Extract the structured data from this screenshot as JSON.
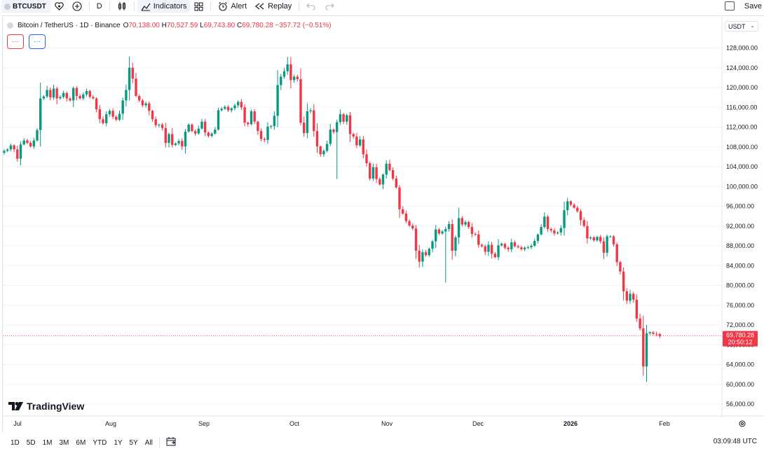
{
  "toolbar": {
    "symbol": "BTCUSDT",
    "interval": "D",
    "indicators_label": "Indicators",
    "alert_label": "Alert",
    "replay_label": "Replay",
    "save_label": "Save"
  },
  "legend": {
    "title": "Bitcoin / TetherUS · 1D · Binance",
    "o_label": "O",
    "o_value": "70,138.00",
    "h_label": "H",
    "h_value": "70,527.59",
    "l_label": "L",
    "l_value": "69,743.80",
    "c_label": "C",
    "c_value": "69,780.28",
    "change": "−357.72 (−0.51%)"
  },
  "indicator_buttons": [
    "···",
    "···"
  ],
  "currency": "USDT",
  "brand": "TradingView",
  "price_label": {
    "price": "69,780.28",
    "countdown": "20:50:12"
  },
  "colors": {
    "up": "#089981",
    "down": "#f23645",
    "accent": "#2962ff"
  },
  "bottom_bar": {
    "ranges": [
      "1D",
      "5D",
      "1M",
      "3M",
      "6M",
      "YTD",
      "1Y",
      "5Y",
      "All"
    ],
    "time": "03:09:48 UTC"
  },
  "chart_data": {
    "type": "candlestick",
    "yticks": [
      56000,
      60000,
      64000,
      68000,
      72000,
      76000,
      80000,
      84000,
      88000,
      92000,
      96000,
      100000,
      104000,
      108000,
      112000,
      116000,
      120000,
      124000,
      128000
    ],
    "ytick_labels": [
      "56,000.00",
      "60,000.00",
      "64,000.00",
      "68,000.00",
      "72,000.00",
      "76,000.00",
      "80,000.00",
      "84,000.00",
      "88,000.00",
      "92,000.00",
      "96,000.00",
      "100,000.00",
      "104,000.00",
      "108,000.00",
      "112,000.00",
      "116,000.00",
      "120,000.00",
      "124,000.00",
      "128,000.00"
    ],
    "xticks": [
      "Jul",
      "Aug",
      "Sep",
      "Oct",
      "Nov",
      "Dec",
      "2026",
      "Feb"
    ],
    "last_price": 69780.28,
    "closes": [
      107200,
      107500,
      108300,
      107500,
      105600,
      108500,
      109300,
      108800,
      108100,
      109300,
      111400,
      117800,
      118200,
      119500,
      118000,
      119800,
      117800,
      118100,
      118900,
      117800,
      117400,
      119900,
      118300,
      117800,
      118600,
      119300,
      118100,
      117800,
      115600,
      113600,
      112800,
      114600,
      115300,
      114100,
      113500,
      114700,
      117400,
      119500,
      124000,
      121800,
      118300,
      117400,
      116400,
      116800,
      115300,
      113600,
      112400,
      112500,
      111800,
      108800,
      110600,
      108400,
      108700,
      109200,
      108100,
      111100,
      112500,
      111200,
      110700,
      111700,
      113100,
      110900,
      110200,
      110700,
      111500,
      115400,
      115700,
      116100,
      115400,
      115800,
      116400,
      117100,
      116000,
      112900,
      112600,
      115200,
      113100,
      111200,
      109600,
      109400,
      112100,
      112200,
      114300,
      120500,
      122200,
      123300,
      124700,
      121500,
      122200,
      121700,
      112900,
      110800,
      115200,
      115400,
      111200,
      108100,
      106500,
      107200,
      108600,
      111500,
      111000,
      113000,
      114600,
      113100,
      114400,
      110600,
      110100,
      108300,
      109500,
      106500,
      104700,
      101600,
      103900,
      101500,
      100400,
      102400,
      104600,
      103300,
      101600,
      99800,
      95400,
      94500,
      93000,
      92100,
      91500,
      87000,
      84800,
      86700,
      86100,
      87400,
      88900,
      91300,
      90500,
      90900,
      91400,
      92400,
      87000,
      89700,
      93600,
      92300,
      92800,
      91800,
      90400,
      90300,
      88200,
      87900,
      86800,
      88200,
      86400,
      85700,
      88100,
      88400,
      87600,
      87300,
      88700,
      87900,
      87700,
      87300,
      87600,
      87700,
      88000,
      89000,
      90300,
      91800,
      93900,
      91400,
      91100,
      90500,
      90700,
      91600,
      95200,
      97000,
      96300,
      95700,
      95000,
      93200,
      92000,
      89500,
      89700,
      89100,
      89800,
      88900,
      86600,
      89900,
      89900,
      88300,
      84700,
      82800,
      78800,
      76900,
      78300,
      77100,
      73300,
      71300,
      63600,
      70300,
      70500,
      70200,
      70140,
      69780
    ]
  }
}
